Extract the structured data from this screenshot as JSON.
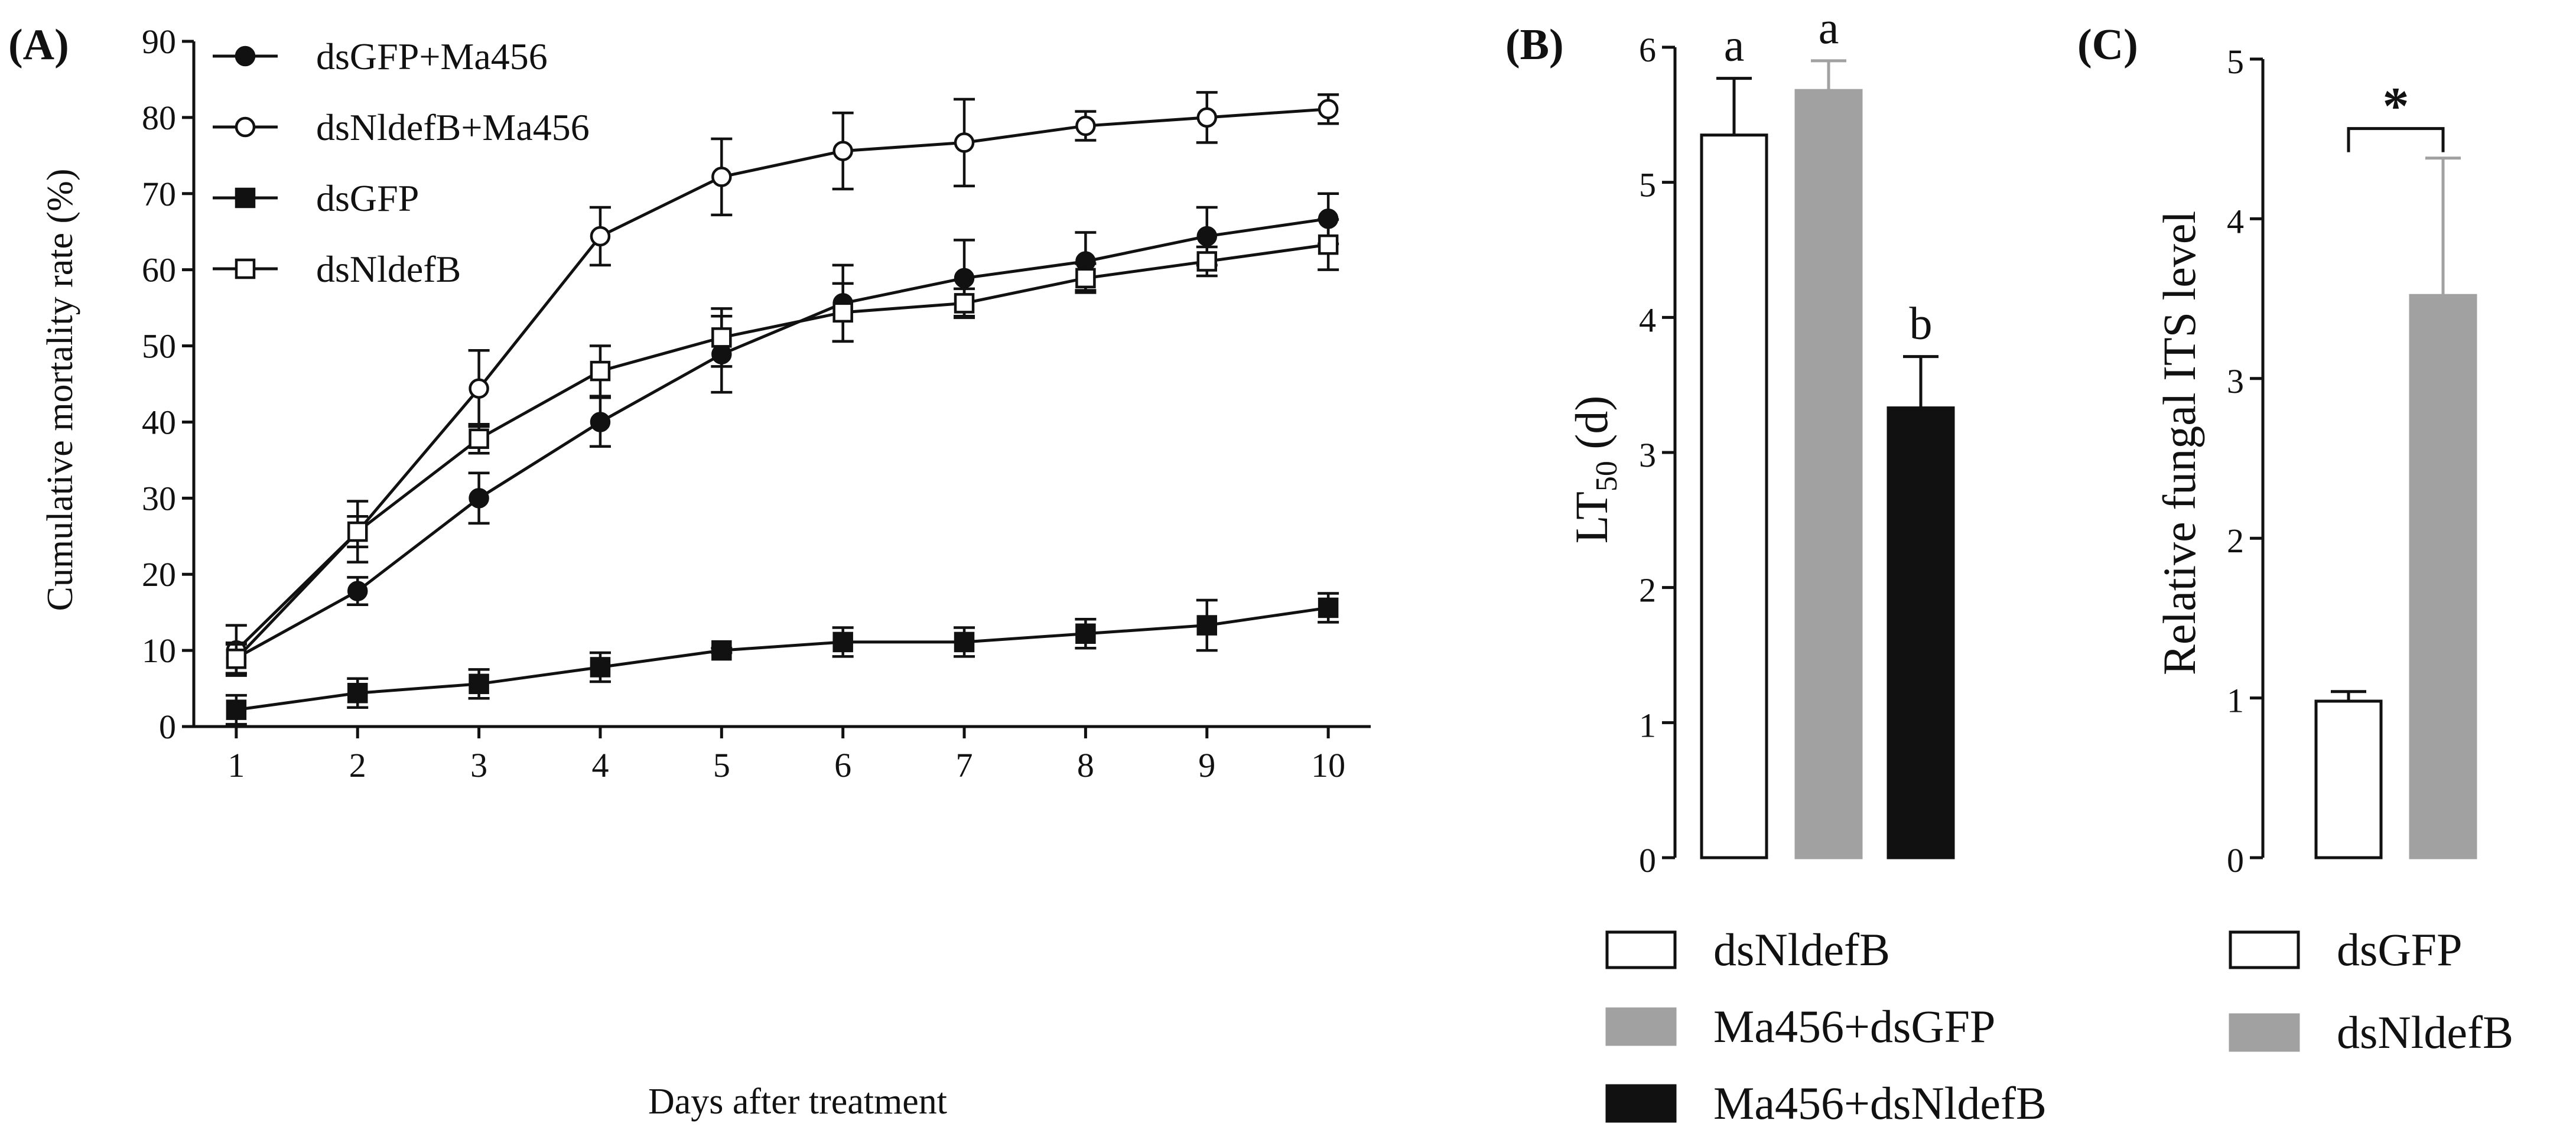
{
  "charts": [
    {
      "id": "A",
      "panel_label": "(A)",
      "chart_data": {
        "type": "line",
        "title": "",
        "xlabel": "Days after treatment",
        "ylabel": "Cumulative mortality rate (%)",
        "x": [
          1,
          2,
          3,
          4,
          5,
          6,
          7,
          8,
          9,
          10
        ],
        "xticks": [
          "1",
          "2",
          "3",
          "4",
          "5",
          "6",
          "7",
          "8",
          "9",
          "10"
        ],
        "xlim": [
          0.65,
          10.35
        ],
        "ylim": [
          0,
          90
        ],
        "yticks": [
          "0",
          "10",
          "20",
          "30",
          "40",
          "50",
          "60",
          "70",
          "80",
          "90"
        ],
        "legend_position": "top-left",
        "series": [
          {
            "name": "dsGFP+Ma456",
            "marker": "circle-filled",
            "values": [
              9,
              17.8,
              30,
              40,
              48.9,
              55.6,
              58.9,
              61.1,
              64.4,
              66.7
            ],
            "errors": [
              2.0,
              1.8,
              3.3,
              3.2,
              5.0,
              5.0,
              5.0,
              3.8,
              3.8,
              3.3
            ]
          },
          {
            "name": "dsNldefB+Ma456",
            "marker": "circle-open",
            "values": [
              10,
              25.6,
              44.4,
              64.4,
              72.2,
              75.6,
              76.7,
              78.9,
              80,
              81.1
            ],
            "errors": [
              3.3,
              4.0,
              5.0,
              3.8,
              5.0,
              5.0,
              5.7,
              1.9,
              3.3,
              1.9
            ]
          },
          {
            "name": "dsGFP",
            "marker": "square-filled",
            "values": [
              2.2,
              4.4,
              5.6,
              7.8,
              10,
              11.1,
              11.1,
              12.2,
              13.3,
              15.6
            ],
            "errors": [
              1.9,
              1.9,
              1.9,
              1.9,
              0.3,
              1.9,
              1.9,
              1.9,
              3.3,
              1.9
            ]
          },
          {
            "name": "dsNldefB",
            "marker": "square-open",
            "values": [
              8.9,
              25.6,
              37.8,
              46.7,
              51.1,
              54.4,
              55.6,
              58.9,
              61.1,
              63.3
            ],
            "errors": [
              1.9,
              2.0,
              1.9,
              3.3,
              3.8,
              3.8,
              1.9,
              1.9,
              1.9,
              3.3
            ]
          }
        ]
      }
    },
    {
      "id": "B",
      "panel_label": "(B)",
      "chart_data": {
        "type": "bar",
        "title": "",
        "xlabel": "",
        "ylabel": "LT",
        "ylabel_subscript": "50",
        "ylabel_suffix": " (d)",
        "categories": [
          "dsNldefB",
          "Ma456+dsGFP",
          "Ma456+dsNldefB"
        ],
        "values": [
          5.35,
          5.68,
          3.33
        ],
        "errors": [
          0.42,
          0.22,
          0.38
        ],
        "colors": [
          "#ffffff",
          "#a2a1a1",
          "#111111"
        ],
        "error_colors": [
          "#111111",
          "#a2a1a1",
          "#111111"
        ],
        "significance_letters": [
          "a",
          "a",
          "b"
        ],
        "ylim": [
          0,
          6
        ],
        "yticks": [
          "0",
          "1",
          "2",
          "3",
          "4",
          "5",
          "6"
        ],
        "legend_position": "bottom"
      }
    },
    {
      "id": "C",
      "panel_label": "(C)",
      "chart_data": {
        "type": "bar",
        "title": "",
        "xlabel": "",
        "ylabel": "Relative fungal ITS level",
        "categories": [
          "dsGFP",
          "dsNldefB"
        ],
        "values": [
          0.98,
          3.52
        ],
        "errors": [
          0.06,
          0.86
        ],
        "colors": [
          "#ffffff",
          "#a2a1a1"
        ],
        "error_colors": [
          "#111111",
          "#a2a1a1"
        ],
        "significance": "*",
        "ylim": [
          0,
          5
        ],
        "yticks": [
          "0",
          "1",
          "2",
          "3",
          "4",
          "5"
        ],
        "legend_position": "bottom"
      }
    }
  ]
}
